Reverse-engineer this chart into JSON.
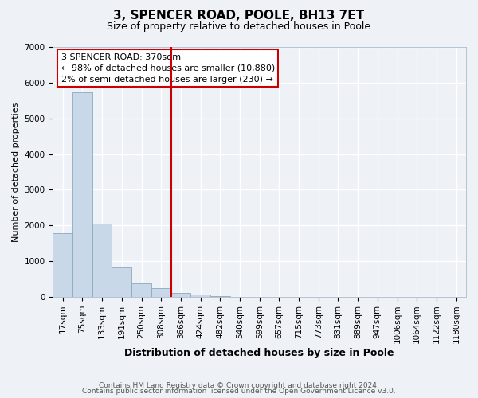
{
  "title": "3, SPENCER ROAD, POOLE, BH13 7ET",
  "subtitle": "Size of property relative to detached houses in Poole",
  "xlabel": "Distribution of detached houses by size in Poole",
  "ylabel": "Number of detached properties",
  "bar_labels": [
    "17sqm",
    "75sqm",
    "133sqm",
    "191sqm",
    "250sqm",
    "308sqm",
    "366sqm",
    "424sqm",
    "482sqm",
    "540sqm",
    "599sqm",
    "657sqm",
    "715sqm",
    "773sqm",
    "831sqm",
    "889sqm",
    "947sqm",
    "1006sqm",
    "1064sqm",
    "1122sqm",
    "1180sqm"
  ],
  "bar_values": [
    1780,
    5730,
    2050,
    830,
    370,
    240,
    110,
    60,
    30,
    10,
    5,
    0,
    0,
    0,
    0,
    0,
    0,
    0,
    0,
    0,
    0
  ],
  "bar_color": "#c8d8e8",
  "bar_edge_color": "#8aaabb",
  "property_line_x": 5.5,
  "property_line_color": "#cc0000",
  "annotation_line1": "3 SPENCER ROAD: 370sqm",
  "annotation_line2": "← 98% of detached houses are smaller (10,880)",
  "annotation_line3": "2% of semi-detached houses are larger (230) →",
  "annotation_box_color": "#ffffff",
  "annotation_box_edge": "#cc0000",
  "ylim": [
    0,
    7000
  ],
  "yticks": [
    0,
    1000,
    2000,
    3000,
    4000,
    5000,
    6000,
    7000
  ],
  "footer1": "Contains HM Land Registry data © Crown copyright and database right 2024.",
  "footer2": "Contains public sector information licensed under the Open Government Licence v3.0.",
  "background_color": "#eef2f7",
  "grid_color": "#ffffff",
  "title_fontsize": 11,
  "subtitle_fontsize": 9,
  "ylabel_fontsize": 8,
  "xlabel_fontsize": 9,
  "tick_fontsize": 7.5,
  "footer_fontsize": 6.5
}
